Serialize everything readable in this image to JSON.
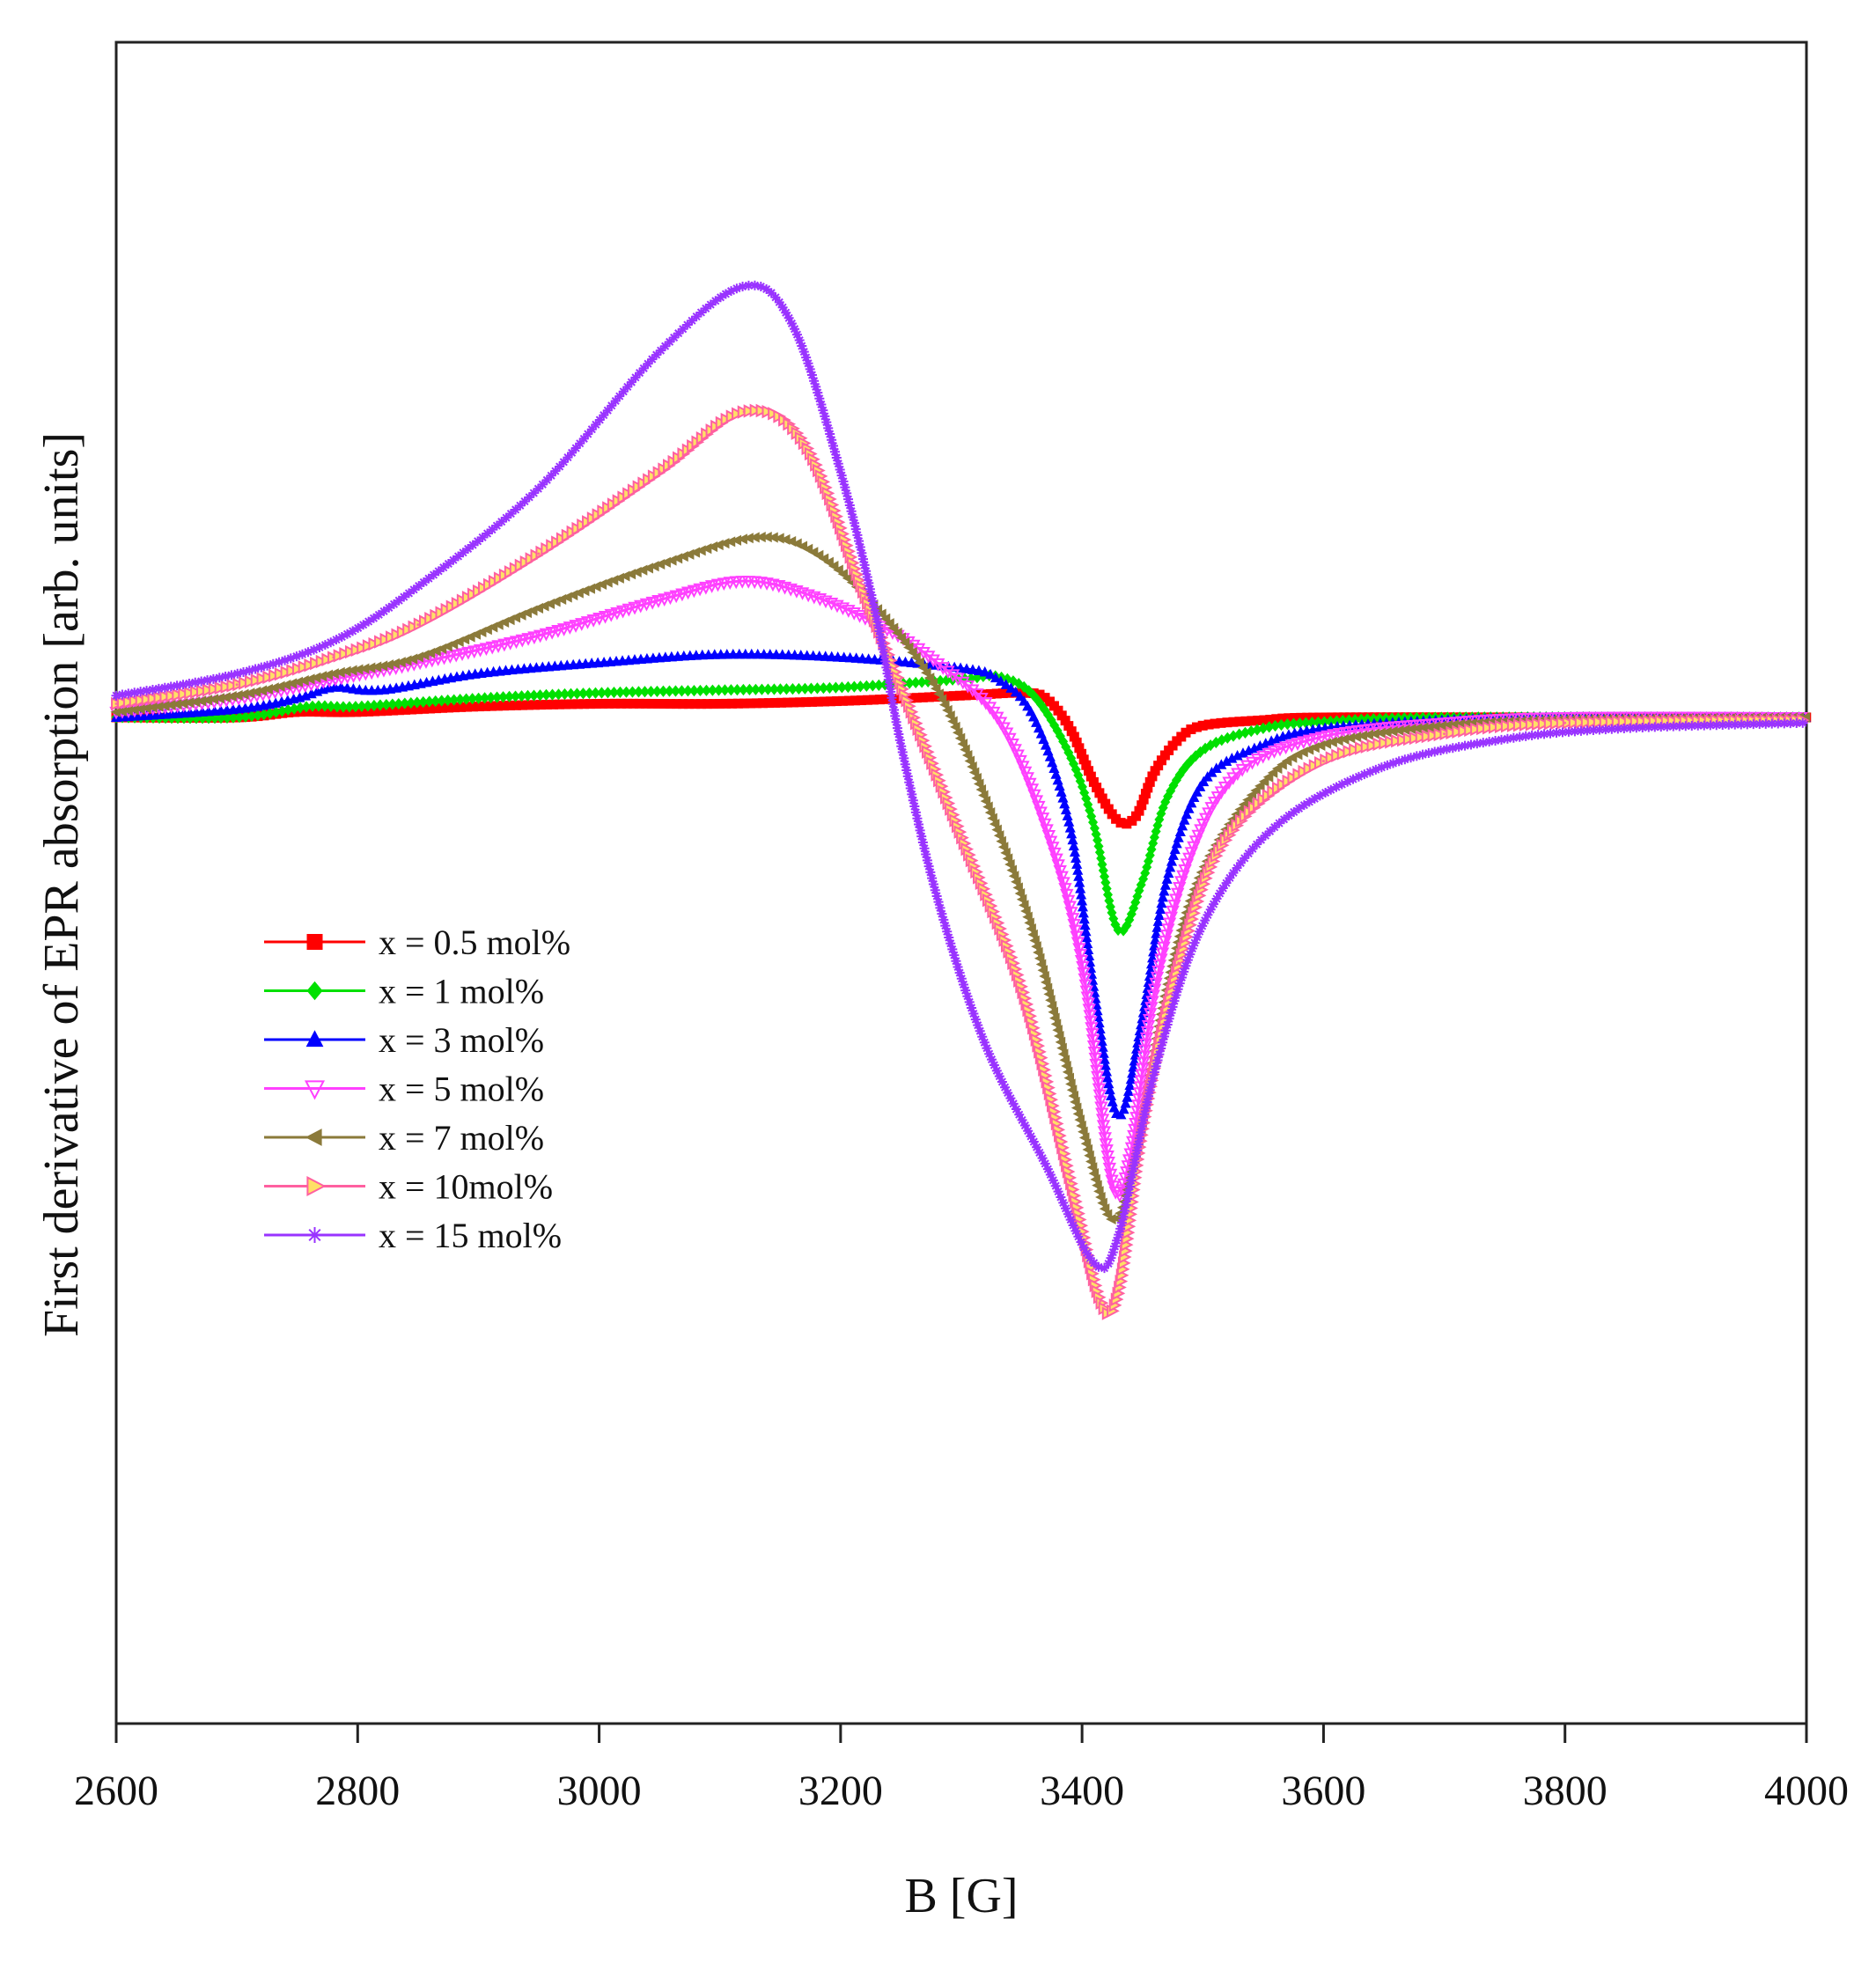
{
  "chart_data": {
    "type": "line",
    "title": "",
    "xlabel": "B [G]",
    "ylabel": "First derivative of EPR absorption [arb. units]",
    "xlim": [
      2600,
      4000
    ],
    "ylim": [
      -1.0,
      1.0
    ],
    "y_ticks_shown": false,
    "x_ticks": [
      "2600",
      "2800",
      "3000",
      "3200",
      "3400",
      "3600",
      "3800",
      "4000"
    ],
    "legend_position": "middle-left",
    "series": [
      {
        "name": "x = 0.5 mol%",
        "color": "#ff0000",
        "marker": "square",
        "points": [
          [
            2600,
            0.0
          ],
          [
            2700,
            0.0
          ],
          [
            2750,
            0.01
          ],
          [
            2800,
            0.01
          ],
          [
            2900,
            0.02
          ],
          [
            3000,
            0.025
          ],
          [
            3100,
            0.025
          ],
          [
            3200,
            0.03
          ],
          [
            3300,
            0.04
          ],
          [
            3350,
            0.045
          ],
          [
            3370,
            0.035
          ],
          [
            3390,
            -0.02
          ],
          [
            3410,
            -0.12
          ],
          [
            3430,
            -0.19
          ],
          [
            3445,
            -0.18
          ],
          [
            3460,
            -0.1
          ],
          [
            3480,
            -0.04
          ],
          [
            3500,
            -0.015
          ],
          [
            3550,
            -0.005
          ],
          [
            3600,
            0.0
          ],
          [
            3800,
            0.0
          ],
          [
            4000,
            0.0
          ]
        ]
      },
      {
        "name": "x = 1 mol%",
        "color": "#00e000",
        "marker": "diamond",
        "points": [
          [
            2600,
            0.0
          ],
          [
            2700,
            0.0
          ],
          [
            2760,
            0.02
          ],
          [
            2800,
            0.02
          ],
          [
            2900,
            0.035
          ],
          [
            3000,
            0.045
          ],
          [
            3100,
            0.05
          ],
          [
            3200,
            0.055
          ],
          [
            3300,
            0.07
          ],
          [
            3330,
            0.075
          ],
          [
            3360,
            0.04
          ],
          [
            3390,
            -0.07
          ],
          [
            3410,
            -0.2
          ],
          [
            3430,
            -0.39
          ],
          [
            3450,
            -0.3
          ],
          [
            3470,
            -0.15
          ],
          [
            3500,
            -0.06
          ],
          [
            3550,
            -0.02
          ],
          [
            3600,
            -0.008
          ],
          [
            3700,
            0.0
          ],
          [
            4000,
            0.0
          ]
        ]
      },
      {
        "name": "x = 3 mol%",
        "color": "#0000ff",
        "marker": "triangle-up",
        "points": [
          [
            2600,
            0.0
          ],
          [
            2700,
            0.015
          ],
          [
            2750,
            0.035
          ],
          [
            2780,
            0.055
          ],
          [
            2820,
            0.05
          ],
          [
            2900,
            0.08
          ],
          [
            3000,
            0.1
          ],
          [
            3100,
            0.115
          ],
          [
            3200,
            0.11
          ],
          [
            3300,
            0.09
          ],
          [
            3330,
            0.07
          ],
          [
            3360,
            0.0
          ],
          [
            3390,
            -0.2
          ],
          [
            3410,
            -0.5
          ],
          [
            3430,
            -0.73
          ],
          [
            3450,
            -0.55
          ],
          [
            3470,
            -0.3
          ],
          [
            3500,
            -0.12
          ],
          [
            3550,
            -0.05
          ],
          [
            3600,
            -0.02
          ],
          [
            3700,
            -0.005
          ],
          [
            3800,
            0.0
          ],
          [
            4000,
            0.0
          ]
        ]
      },
      {
        "name": "x = 5 mol%",
        "color": "#ff40ff",
        "marker": "triangle-down",
        "points": [
          [
            2600,
            0.01
          ],
          [
            2700,
            0.035
          ],
          [
            2780,
            0.07
          ],
          [
            2850,
            0.1
          ],
          [
            2950,
            0.15
          ],
          [
            3050,
            0.215
          ],
          [
            3120,
            0.25
          ],
          [
            3180,
            0.22
          ],
          [
            3240,
            0.16
          ],
          [
            3280,
            0.1
          ],
          [
            3330,
            0.0
          ],
          [
            3370,
            -0.2
          ],
          [
            3400,
            -0.45
          ],
          [
            3425,
            -0.85
          ],
          [
            3440,
            -0.8
          ],
          [
            3460,
            -0.5
          ],
          [
            3490,
            -0.25
          ],
          [
            3530,
            -0.1
          ],
          [
            3600,
            -0.035
          ],
          [
            3700,
            -0.01
          ],
          [
            3800,
            0.0
          ],
          [
            4000,
            0.0
          ]
        ]
      },
      {
        "name": "x = 7 mol%",
        "color": "#8b7a3a",
        "marker": "triangle-left",
        "points": [
          [
            2600,
            0.01
          ],
          [
            2700,
            0.04
          ],
          [
            2780,
            0.08
          ],
          [
            2850,
            0.11
          ],
          [
            2950,
            0.2
          ],
          [
            3050,
            0.28
          ],
          [
            3130,
            0.33
          ],
          [
            3180,
            0.3
          ],
          [
            3230,
            0.2
          ],
          [
            3280,
            0.05
          ],
          [
            3320,
            -0.15
          ],
          [
            3360,
            -0.4
          ],
          [
            3400,
            -0.75
          ],
          [
            3425,
            -0.92
          ],
          [
            3445,
            -0.8
          ],
          [
            3470,
            -0.5
          ],
          [
            3500,
            -0.28
          ],
          [
            3550,
            -0.12
          ],
          [
            3600,
            -0.05
          ],
          [
            3700,
            -0.015
          ],
          [
            3800,
            -0.005
          ],
          [
            4000,
            0.0
          ]
        ]
      },
      {
        "name": "x = 10mol%",
        "color": "#ff60a0",
        "marker": "triangle-right",
        "points": [
          [
            2600,
            0.025
          ],
          [
            2700,
            0.06
          ],
          [
            2780,
            0.11
          ],
          [
            2850,
            0.17
          ],
          [
            2950,
            0.3
          ],
          [
            3050,
            0.45
          ],
          [
            3120,
            0.56
          ],
          [
            3170,
            0.5
          ],
          [
            3220,
            0.22
          ],
          [
            3260,
            0.0
          ],
          [
            3300,
            -0.22
          ],
          [
            3350,
            -0.5
          ],
          [
            3390,
            -0.85
          ],
          [
            3415,
            -1.07
          ],
          [
            3430,
            -1.05
          ],
          [
            3450,
            -0.75
          ],
          [
            3480,
            -0.45
          ],
          [
            3520,
            -0.22
          ],
          [
            3600,
            -0.08
          ],
          [
            3700,
            -0.03
          ],
          [
            3800,
            -0.01
          ],
          [
            4000,
            -0.005
          ]
        ]
      },
      {
        "name": "x = 15 mol%",
        "color": "#9933ff",
        "marker": "star",
        "points": [
          [
            2600,
            0.04
          ],
          [
            2700,
            0.08
          ],
          [
            2780,
            0.14
          ],
          [
            2850,
            0.24
          ],
          [
            2950,
            0.42
          ],
          [
            3050,
            0.67
          ],
          [
            3120,
            0.79
          ],
          [
            3160,
            0.72
          ],
          [
            3200,
            0.45
          ],
          [
            3230,
            0.18
          ],
          [
            3250,
            -0.05
          ],
          [
            3280,
            -0.33
          ],
          [
            3320,
            -0.6
          ],
          [
            3370,
            -0.82
          ],
          [
            3410,
            -1.0
          ],
          [
            3430,
            -0.95
          ],
          [
            3460,
            -0.65
          ],
          [
            3500,
            -0.38
          ],
          [
            3560,
            -0.2
          ],
          [
            3650,
            -0.09
          ],
          [
            3750,
            -0.04
          ],
          [
            3850,
            -0.02
          ],
          [
            4000,
            -0.01
          ]
        ]
      }
    ]
  }
}
